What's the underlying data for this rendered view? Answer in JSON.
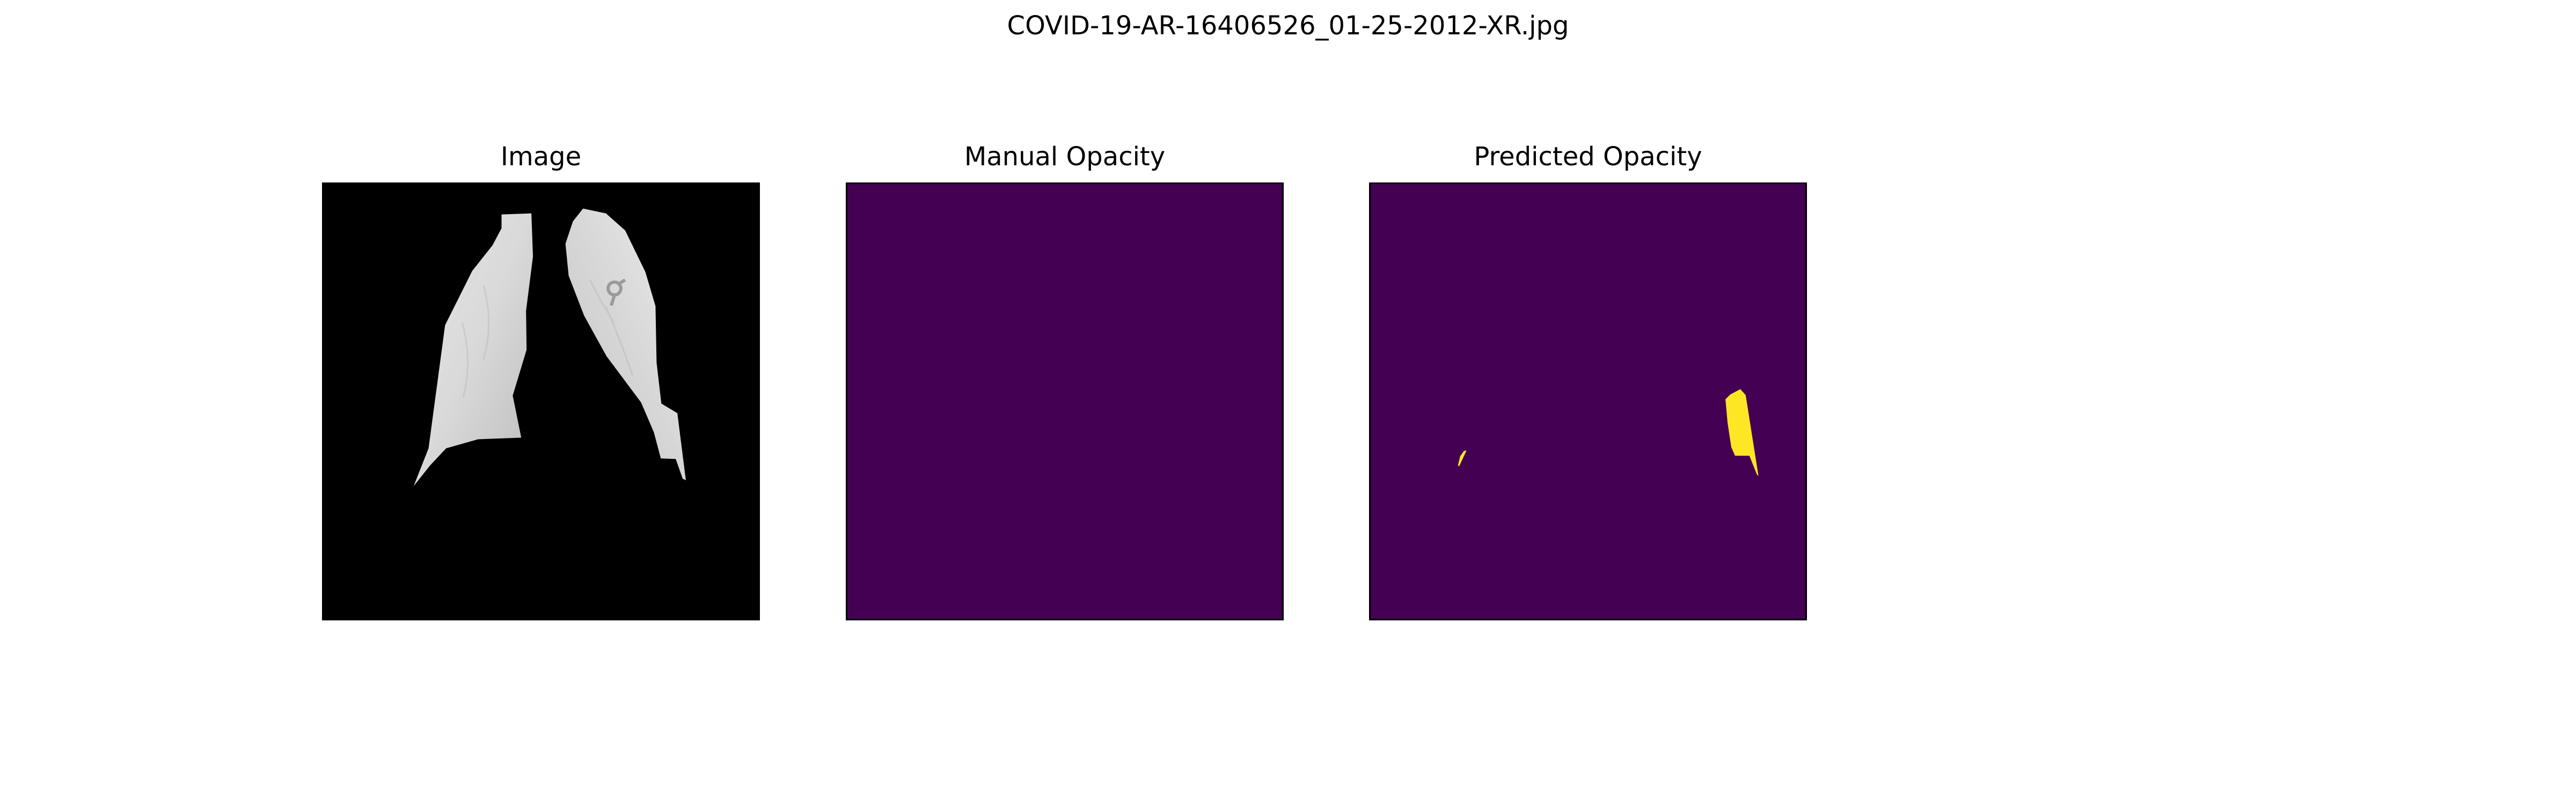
{
  "figure": {
    "title": "COVID-19-AR-16406526_01-25-2012-XR.jpg"
  },
  "panels": [
    {
      "title": "Image",
      "kind": "grayscale-xray",
      "background_color": "#000000",
      "content": "segmented lung fields (grayscale)"
    },
    {
      "title": "Manual Opacity",
      "kind": "mask",
      "background_color": "#440154",
      "regions": 0
    },
    {
      "title": "Predicted Opacity",
      "kind": "mask",
      "background_color": "#440154",
      "foreground_color": "#fde725",
      "regions": 2
    }
  ],
  "colors": {
    "mask_background": "#440154",
    "mask_foreground": "#fde725",
    "image_background": "#000000"
  }
}
